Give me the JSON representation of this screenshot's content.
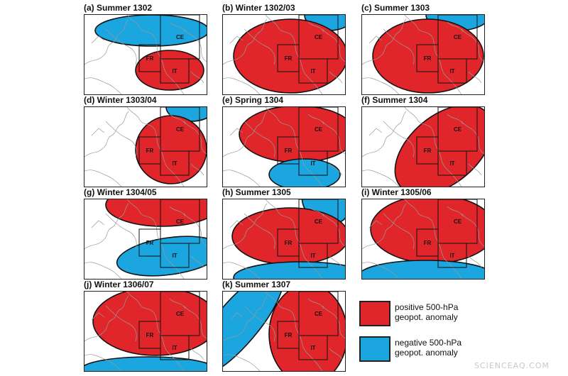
{
  "colors": {
    "positive": "#e0262a",
    "negative": "#1ba6e0",
    "outline": "#111111",
    "coast": "#9a9a9a"
  },
  "region_labels": {
    "fr": "FR",
    "ce": "CE",
    "it": "IT"
  },
  "panels": [
    {
      "title": "(a) Summer 1302",
      "anomalies": [
        {
          "sign": "negative"
        },
        {
          "sign": "positive"
        }
      ]
    },
    {
      "title": "(b) Winter 1302/03",
      "anomalies": [
        {
          "sign": "negative"
        },
        {
          "sign": "positive"
        }
      ]
    },
    {
      "title": "(c) Summer 1303",
      "anomalies": [
        {
          "sign": "negative"
        },
        {
          "sign": "positive"
        }
      ]
    },
    {
      "title": "(d) Winter 1303/04",
      "anomalies": [
        {
          "sign": "negative"
        },
        {
          "sign": "positive"
        }
      ]
    },
    {
      "title": "(e) Spring 1304",
      "anomalies": [
        {
          "sign": "positive"
        },
        {
          "sign": "negative"
        }
      ]
    },
    {
      "title": "(f) Summer 1304",
      "anomalies": [
        {
          "sign": "positive"
        }
      ]
    },
    {
      "title": "(g) Winter 1304/05",
      "anomalies": [
        {
          "sign": "positive"
        },
        {
          "sign": "negative"
        }
      ]
    },
    {
      "title": "(h) Summer 1305",
      "anomalies": [
        {
          "sign": "negative"
        },
        {
          "sign": "positive"
        },
        {
          "sign": "negative"
        }
      ]
    },
    {
      "title": "(i) Winter 1305/06",
      "anomalies": [
        {
          "sign": "positive"
        },
        {
          "sign": "negative"
        }
      ]
    },
    {
      "title": "(j) Winter 1306/07",
      "anomalies": [
        {
          "sign": "positive"
        },
        {
          "sign": "negative"
        }
      ]
    },
    {
      "title": "(k) Summer 1307",
      "anomalies": [
        {
          "sign": "negative"
        },
        {
          "sign": "positive"
        }
      ]
    }
  ],
  "legend": [
    {
      "sign": "positive",
      "line1": "positive 500-hPa",
      "line2": "geopot. anomaly"
    },
    {
      "sign": "negative",
      "line1": "negative 500-hPa",
      "line2": "geopot. anomaly"
    }
  ],
  "watermark": "SCIENCEAQ.COM"
}
